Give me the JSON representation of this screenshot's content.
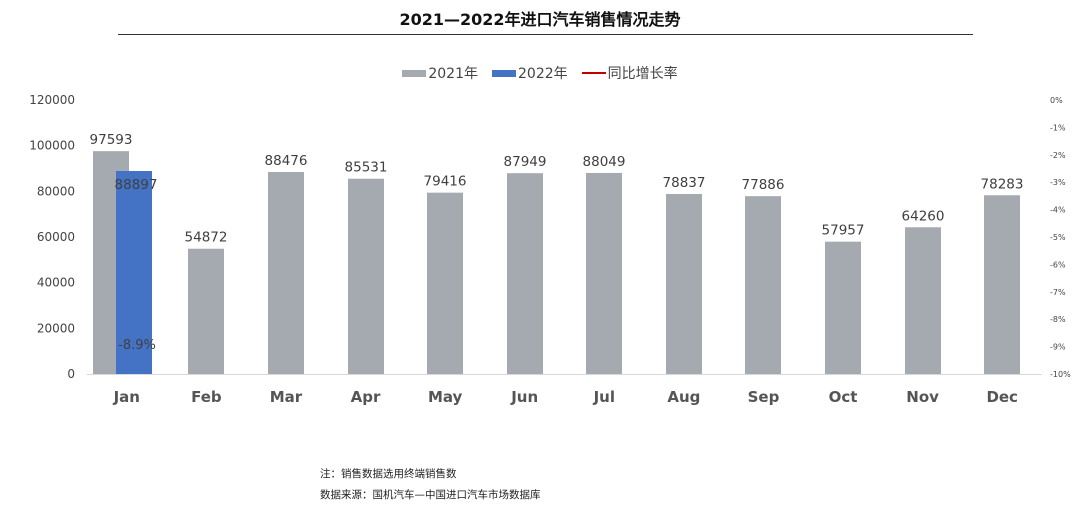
{
  "chart_data": {
    "type": "bar",
    "title": "2021—2022年进口汽车销售情况走势",
    "categories": [
      "Jan",
      "Feb",
      "Mar",
      "Apr",
      "May",
      "Jun",
      "Jul",
      "Aug",
      "Sep",
      "Oct",
      "Nov",
      "Dec"
    ],
    "series": [
      {
        "name": "2021年",
        "color": "#a5aab0",
        "values": [
          97593,
          54872,
          88476,
          85531,
          79416,
          87949,
          88049,
          78837,
          77886,
          57957,
          64260,
          78283
        ]
      },
      {
        "name": "2022年",
        "color": "#4472c4",
        "values": [
          88897,
          null,
          null,
          null,
          null,
          null,
          null,
          null,
          null,
          null,
          null,
          null
        ]
      }
    ],
    "line_series": {
      "name": "同比增长率",
      "color": "#c00000",
      "axis": "right",
      "values": [
        -8.9,
        null,
        null,
        null,
        null,
        null,
        null,
        null,
        null,
        null,
        null,
        null
      ],
      "labels": [
        "-8.9%",
        "",
        "",
        "",
        "",
        "",
        "",
        "",
        "",
        "",
        "",
        ""
      ]
    },
    "ylim": [
      0,
      120000
    ],
    "yticks": [
      0,
      20000,
      40000,
      60000,
      80000,
      100000,
      120000
    ],
    "y2lim": [
      -10,
      0
    ],
    "y2ticks": [
      "0%",
      "-1%",
      "-2%",
      "-3%",
      "-4%",
      "-5%",
      "-6%",
      "-7%",
      "-8%",
      "-9%",
      "-10%"
    ],
    "grid": false,
    "legend_position": "top"
  },
  "footnotes": {
    "note": "注：销售数据选用终端销售数",
    "source": "数据来源：国机汽车—中国进口汽车市场数据库"
  }
}
